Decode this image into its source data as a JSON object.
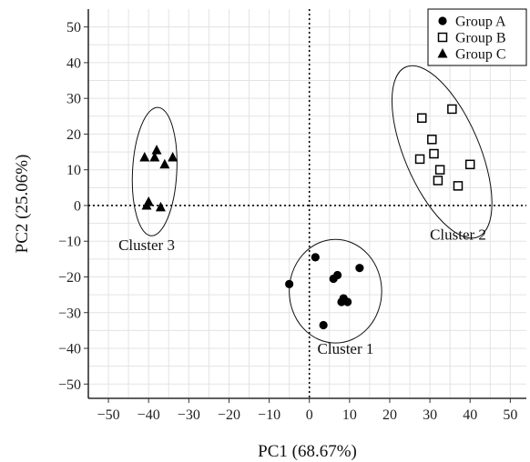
{
  "chart_data": {
    "type": "scatter",
    "xlabel": "PC1 (68.67%)",
    "ylabel": "PC2 (25.06%)",
    "xlim": [
      -55,
      54
    ],
    "ylim": [
      -54,
      55
    ],
    "xticks": [
      -50,
      -40,
      -30,
      -20,
      -10,
      0,
      10,
      20,
      30,
      40,
      50
    ],
    "yticks": [
      -50,
      -40,
      -30,
      -20,
      -10,
      0,
      10,
      20,
      30,
      40,
      50
    ],
    "grid": true,
    "reference_lines": {
      "x": 0,
      "y": 0,
      "style": "dotted"
    },
    "legend": {
      "placement": "top-right"
    },
    "series": [
      {
        "name": "Group A",
        "marker": "circle",
        "color": "#000000",
        "points": [
          [
            -5,
            -22
          ],
          [
            1.5,
            -14.5
          ],
          [
            6,
            -20.5
          ],
          [
            7,
            -19.5
          ],
          [
            12.5,
            -17.5
          ],
          [
            8.5,
            -26
          ],
          [
            8,
            -27
          ],
          [
            9.5,
            -27
          ],
          [
            3.5,
            -33.5
          ]
        ]
      },
      {
        "name": "Group B",
        "marker": "square-open",
        "color": "#000000",
        "points": [
          [
            28,
            24.5
          ],
          [
            35.5,
            27
          ],
          [
            30.5,
            18.5
          ],
          [
            31,
            14.5
          ],
          [
            27.5,
            13
          ],
          [
            32.5,
            10
          ],
          [
            32,
            7
          ],
          [
            40,
            11.5
          ],
          [
            37,
            5.5
          ]
        ]
      },
      {
        "name": "Group C",
        "marker": "triangle",
        "color": "#000000",
        "points": [
          [
            -41,
            13.5
          ],
          [
            -38.5,
            13.5
          ],
          [
            -38,
            15.5
          ],
          [
            -36,
            11.5
          ],
          [
            -34,
            13.5
          ],
          [
            -40,
            1
          ],
          [
            -40.5,
            0
          ],
          [
            -37,
            -0.5
          ]
        ]
      }
    ],
    "ellipses": [
      {
        "label": "Cluster 1",
        "cx": 6.5,
        "cy": -24,
        "rx": 11.5,
        "ry": 14.5,
        "angle": 0
      },
      {
        "label": "Cluster 2",
        "cx": 33,
        "cy": 15,
        "rx": 23,
        "ry": 10.5,
        "angle": 67
      },
      {
        "label": "Cluster 3",
        "cx": -38.5,
        "cy": 9.5,
        "rx": 5.5,
        "ry": 18,
        "angle": 3
      }
    ],
    "annotations": [
      {
        "text": "Cluster 1",
        "x": 2,
        "y": -41.5
      },
      {
        "text": "Cluster 2",
        "x": 30,
        "y": -9.5
      },
      {
        "text": "Cluster 3",
        "x": -47.5,
        "y": -12.5
      }
    ]
  }
}
